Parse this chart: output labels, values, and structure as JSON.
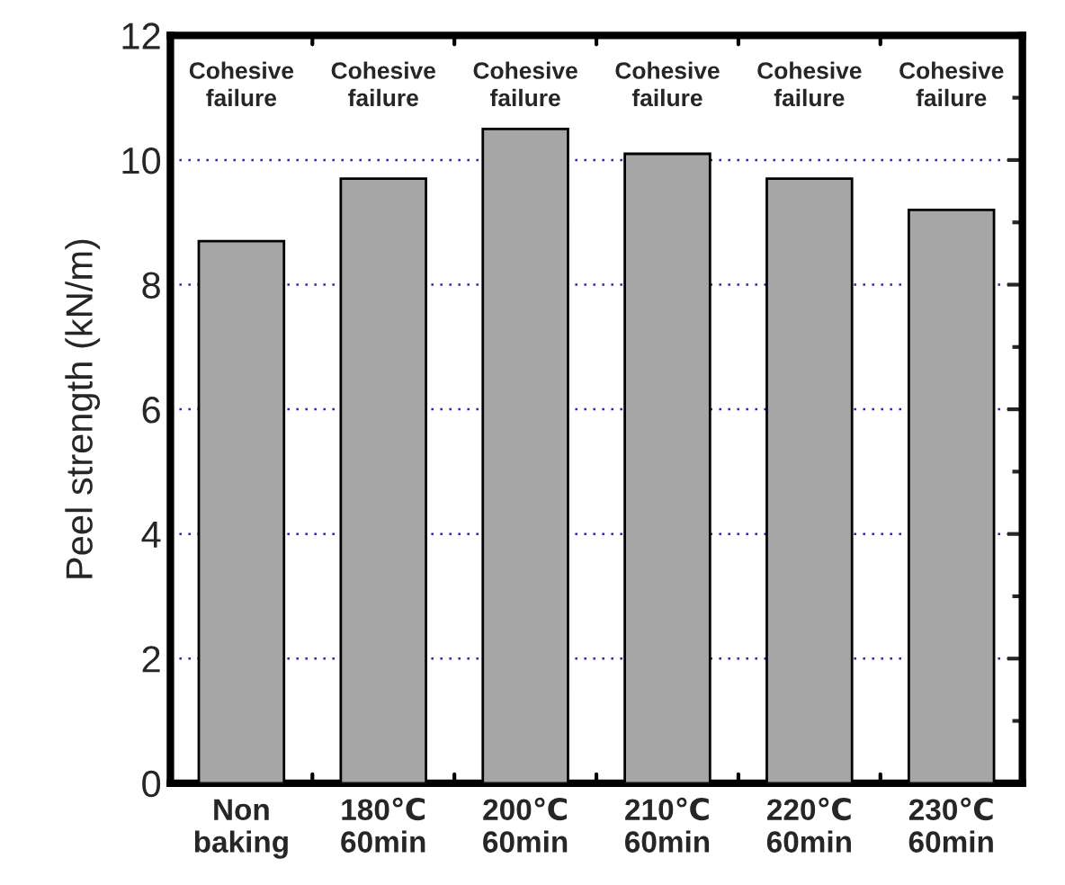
{
  "chart_data": {
    "type": "bar",
    "ylabel": "Peel strength (kN/m)",
    "categories": [
      "Non\nbaking",
      "180℃\n60min",
      "200℃\n60min",
      "210℃\n60min",
      "220℃\n60min",
      "230℃\n60min"
    ],
    "values": [
      8.7,
      9.7,
      10.5,
      10.1,
      9.7,
      9.2
    ],
    "color": "#a6a6a6",
    "ylim": [
      0,
      12
    ],
    "yticks": [
      0,
      2,
      4,
      6,
      8,
      10,
      12
    ],
    "grid": "y",
    "annotations": [
      "Cohesive\nfailure",
      "Cohesive\nfailure",
      "Cohesive\nfailure",
      "Cohesive\nfailure",
      "Cohesive\nfailure",
      "Cohesive\nfailure"
    ]
  }
}
